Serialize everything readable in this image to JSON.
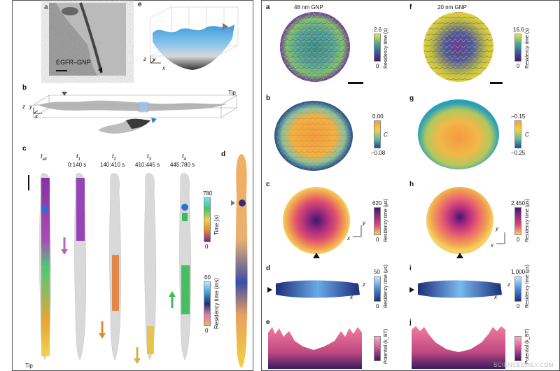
{
  "left_figure": {
    "panel_a": {
      "label": "a",
      "annotation": "EGFR–GNP"
    },
    "panel_b": {
      "label": "b",
      "tip_label": "Tip",
      "axes": {
        "x": "x",
        "y": "y",
        "z": "z"
      }
    },
    "panel_c": {
      "label": "c",
      "columns": [
        {
          "title": "t",
          "sub": "all",
          "range": ""
        },
        {
          "title": "t",
          "sub": "1",
          "range": "0:140 s"
        },
        {
          "title": "t",
          "sub": "2",
          "range": "140:410 s"
        },
        {
          "title": "t",
          "sub": "3",
          "range": "410:445 s"
        },
        {
          "title": "t",
          "sub": "4",
          "range": "445:780 s"
        }
      ],
      "tip_label": "Tip",
      "colorbar_time": {
        "max": "780",
        "min": "0",
        "title": "Time (s)"
      },
      "colorbar_res": {
        "max": "60",
        "min": "0",
        "title": "Residency time (ms)"
      }
    },
    "panel_d": {
      "label": "d"
    },
    "panel_e": {
      "label": "e",
      "axes": {
        "x": "x",
        "y": "y",
        "z": "z"
      }
    }
  },
  "right_figure": {
    "col_left": {
      "title": "48 nm GNP",
      "rows": [
        {
          "label": "a",
          "cb_max": "2.6",
          "cb_min": "0",
          "cb_title": "Residency time (s)"
        },
        {
          "label": "b",
          "cb_max": "0.00",
          "cb_min": "−0.08",
          "cb_title": "C"
        },
        {
          "label": "c",
          "cb_max": "620",
          "cb_min": "0",
          "cb_title": "Residency time (μs)"
        },
        {
          "label": "d",
          "cb_max": "50",
          "cb_min": "0",
          "cb_title": "Residency time (μs)"
        },
        {
          "label": "e",
          "cb_max": "",
          "cb_min": "",
          "cb_title": "Potential (k_BT)"
        }
      ]
    },
    "col_right": {
      "title": "20 nm GNP",
      "rows": [
        {
          "label": "f",
          "cb_max": "16.6",
          "cb_min": "0",
          "cb_title": "Residency time (s)"
        },
        {
          "label": "g",
          "cb_max": "−0.15",
          "cb_min": "−0.25",
          "cb_title": "C"
        },
        {
          "label": "h",
          "cb_max": "2,450",
          "cb_min": "0",
          "cb_title": "Residency time (μs)"
        },
        {
          "label": "i",
          "cb_max": "1,000",
          "cb_min": "0",
          "cb_title": "Residency time (μs)"
        },
        {
          "label": "j",
          "cb_max": "",
          "cb_min": "",
          "cb_title": "Potential (k_BT)"
        }
      ]
    },
    "axes": {
      "x": "x",
      "y": "y",
      "z": "z"
    }
  },
  "watermark": "SCIENCEDAILY.COM",
  "colors": {
    "purple": "#7a1fa2",
    "orange": "#e08a2a",
    "green": "#2db84d",
    "blue": "#2a6fd6",
    "yellow": "#e8c23a"
  }
}
